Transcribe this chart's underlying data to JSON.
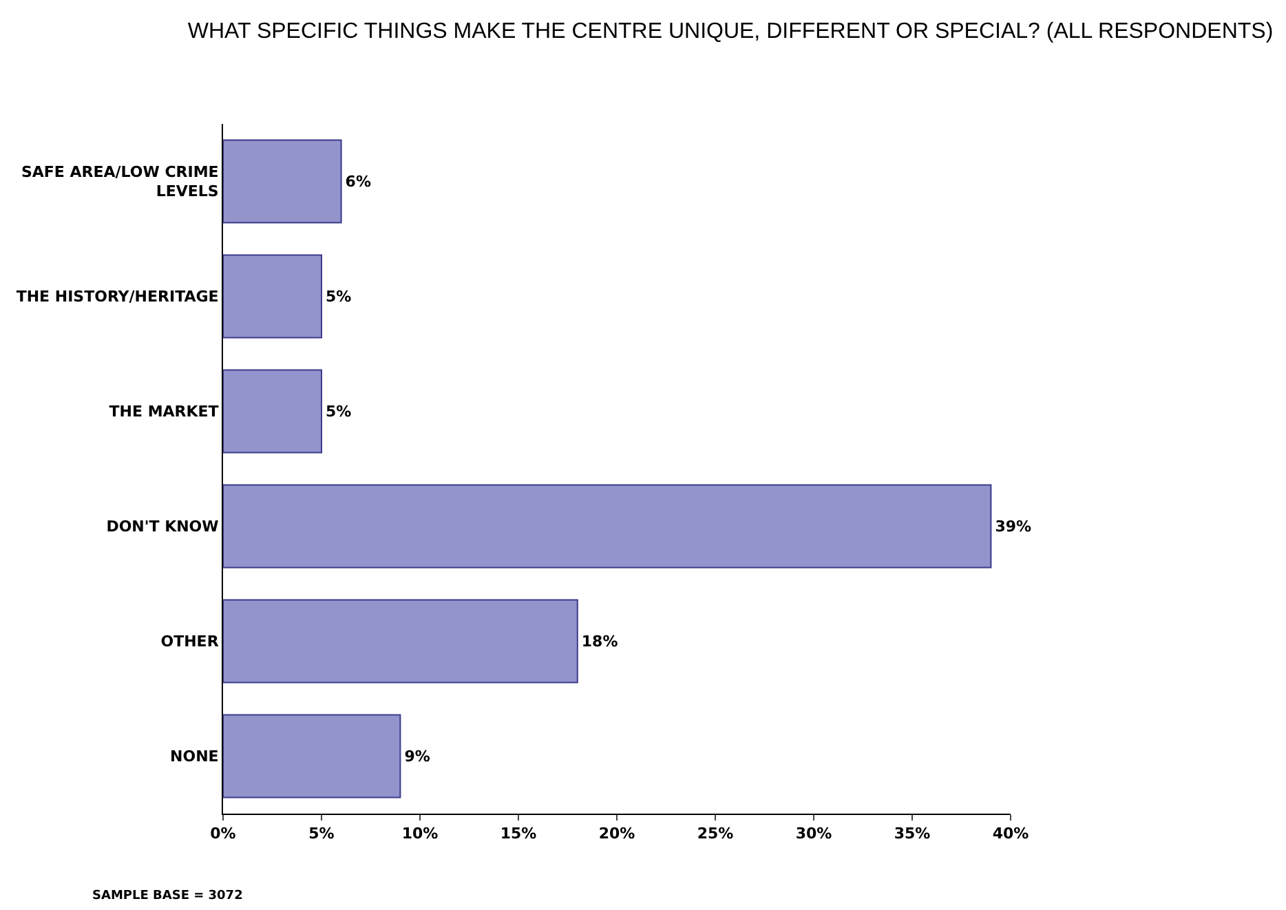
{
  "chart_data": {
    "type": "bar",
    "orientation": "horizontal",
    "title": "WHAT SPECIFIC THINGS MAKE THE CENTRE UNIQUE, DIFFERENT OR SPECIAL? (ALL RESPONDENTS)",
    "categories": [
      "SAFE AREA/LOW CRIME LEVELS",
      "THE HISTORY/HERITAGE",
      "THE MARKET",
      "DON'T KNOW",
      "OTHER",
      "NONE"
    ],
    "values": [
      6,
      5,
      5,
      39,
      18,
      9
    ],
    "value_labels": [
      "6%",
      "5%",
      "5%",
      "39%",
      "18%",
      "9%"
    ],
    "color": "#9494cc",
    "xlim": [
      0,
      40
    ],
    "xticks": [
      {
        "value": 0,
        "label": "0%"
      },
      {
        "value": 5,
        "label": "5%"
      },
      {
        "value": 10,
        "label": "10%"
      },
      {
        "value": 15,
        "label": "15%"
      },
      {
        "value": 20,
        "label": "20%"
      },
      {
        "value": 25,
        "label": "25%"
      },
      {
        "value": 30,
        "label": "30%"
      },
      {
        "value": 35,
        "label": "35%"
      },
      {
        "value": 40,
        "label": "40%"
      }
    ],
    "grid": false,
    "legend": false,
    "annotations": [
      "SAMPLE BASE = 3072"
    ]
  }
}
